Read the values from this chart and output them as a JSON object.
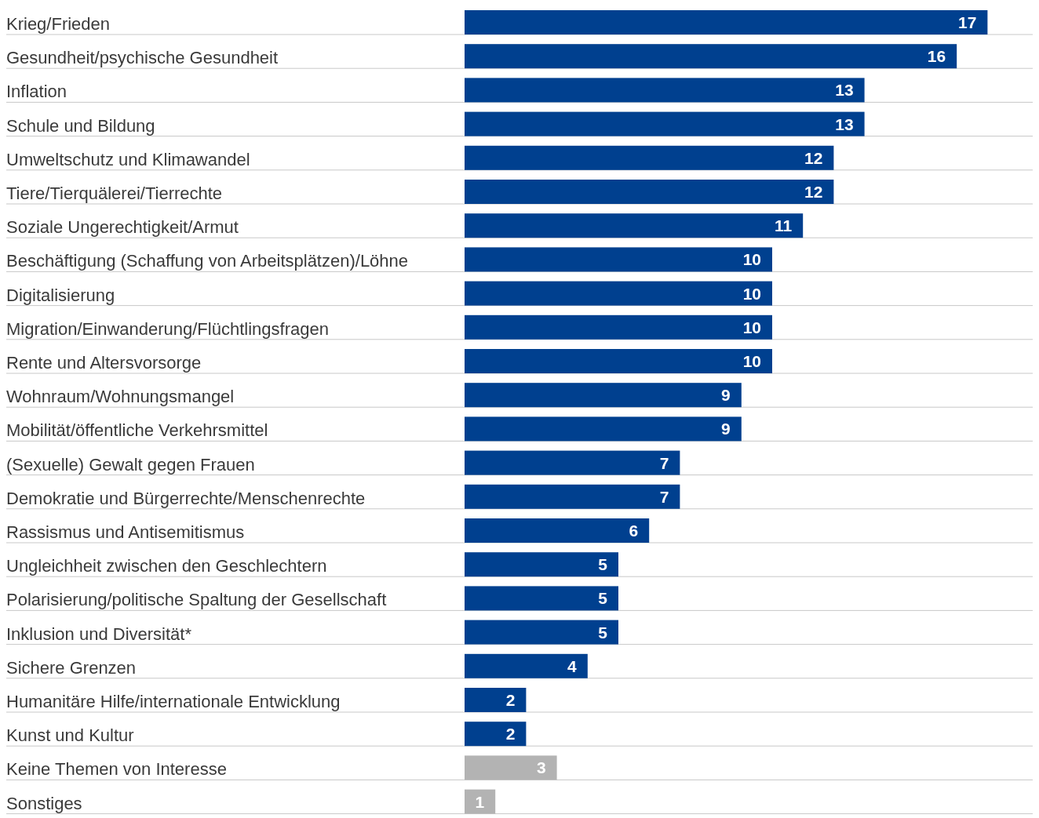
{
  "chart_data": {
    "type": "bar",
    "orientation": "horizontal",
    "data_labels": true,
    "grid": "y",
    "categories": [
      "Krieg/Frieden",
      "Gesundheit/psychische Gesundheit",
      "Inflation",
      "Schule und Bildung",
      "Umweltschutz und Klimawandel",
      "Tiere/Tierquälerei/Tierrechte",
      "Soziale Ungerechtigkeit/Armut",
      "Beschäftigung (Schaffung von Arbeitsplätzen)/Löhne",
      "Digitalisierung",
      "Migration/Einwanderung/Flüchtlingsfragen",
      "Rente und Altersvorsorge",
      "Wohnraum/Wohnungsmangel",
      "Mobilität/öffentliche Verkehrsmittel",
      "(Sexuelle) Gewalt gegen Frauen",
      "Demokratie und Bürgerrechte/Menschenrechte",
      "Rassismus und Antisemitismus",
      "Ungleichheit zwischen den Geschlechtern",
      "Polarisierung/politische Spaltung der Gesellschaft",
      "Inklusion und Diversität*",
      "Sichere Grenzen",
      "Humanitäre Hilfe/internationale Entwicklung",
      "Kunst und Kultur",
      "Keine Themen von Interesse",
      "Sonstiges"
    ],
    "values": [
      17,
      16,
      13,
      13,
      12,
      12,
      11,
      10,
      10,
      10,
      10,
      9,
      9,
      7,
      7,
      6,
      5,
      5,
      5,
      4,
      2,
      2,
      3,
      1
    ],
    "colors": [
      "#00408f",
      "#00408f",
      "#00408f",
      "#00408f",
      "#00408f",
      "#00408f",
      "#00408f",
      "#00408f",
      "#00408f",
      "#00408f",
      "#00408f",
      "#00408f",
      "#00408f",
      "#00408f",
      "#00408f",
      "#00408f",
      "#00408f",
      "#00408f",
      "#00408f",
      "#00408f",
      "#00408f",
      "#00408f",
      "#b3b3b3",
      "#b3b3b3"
    ]
  }
}
